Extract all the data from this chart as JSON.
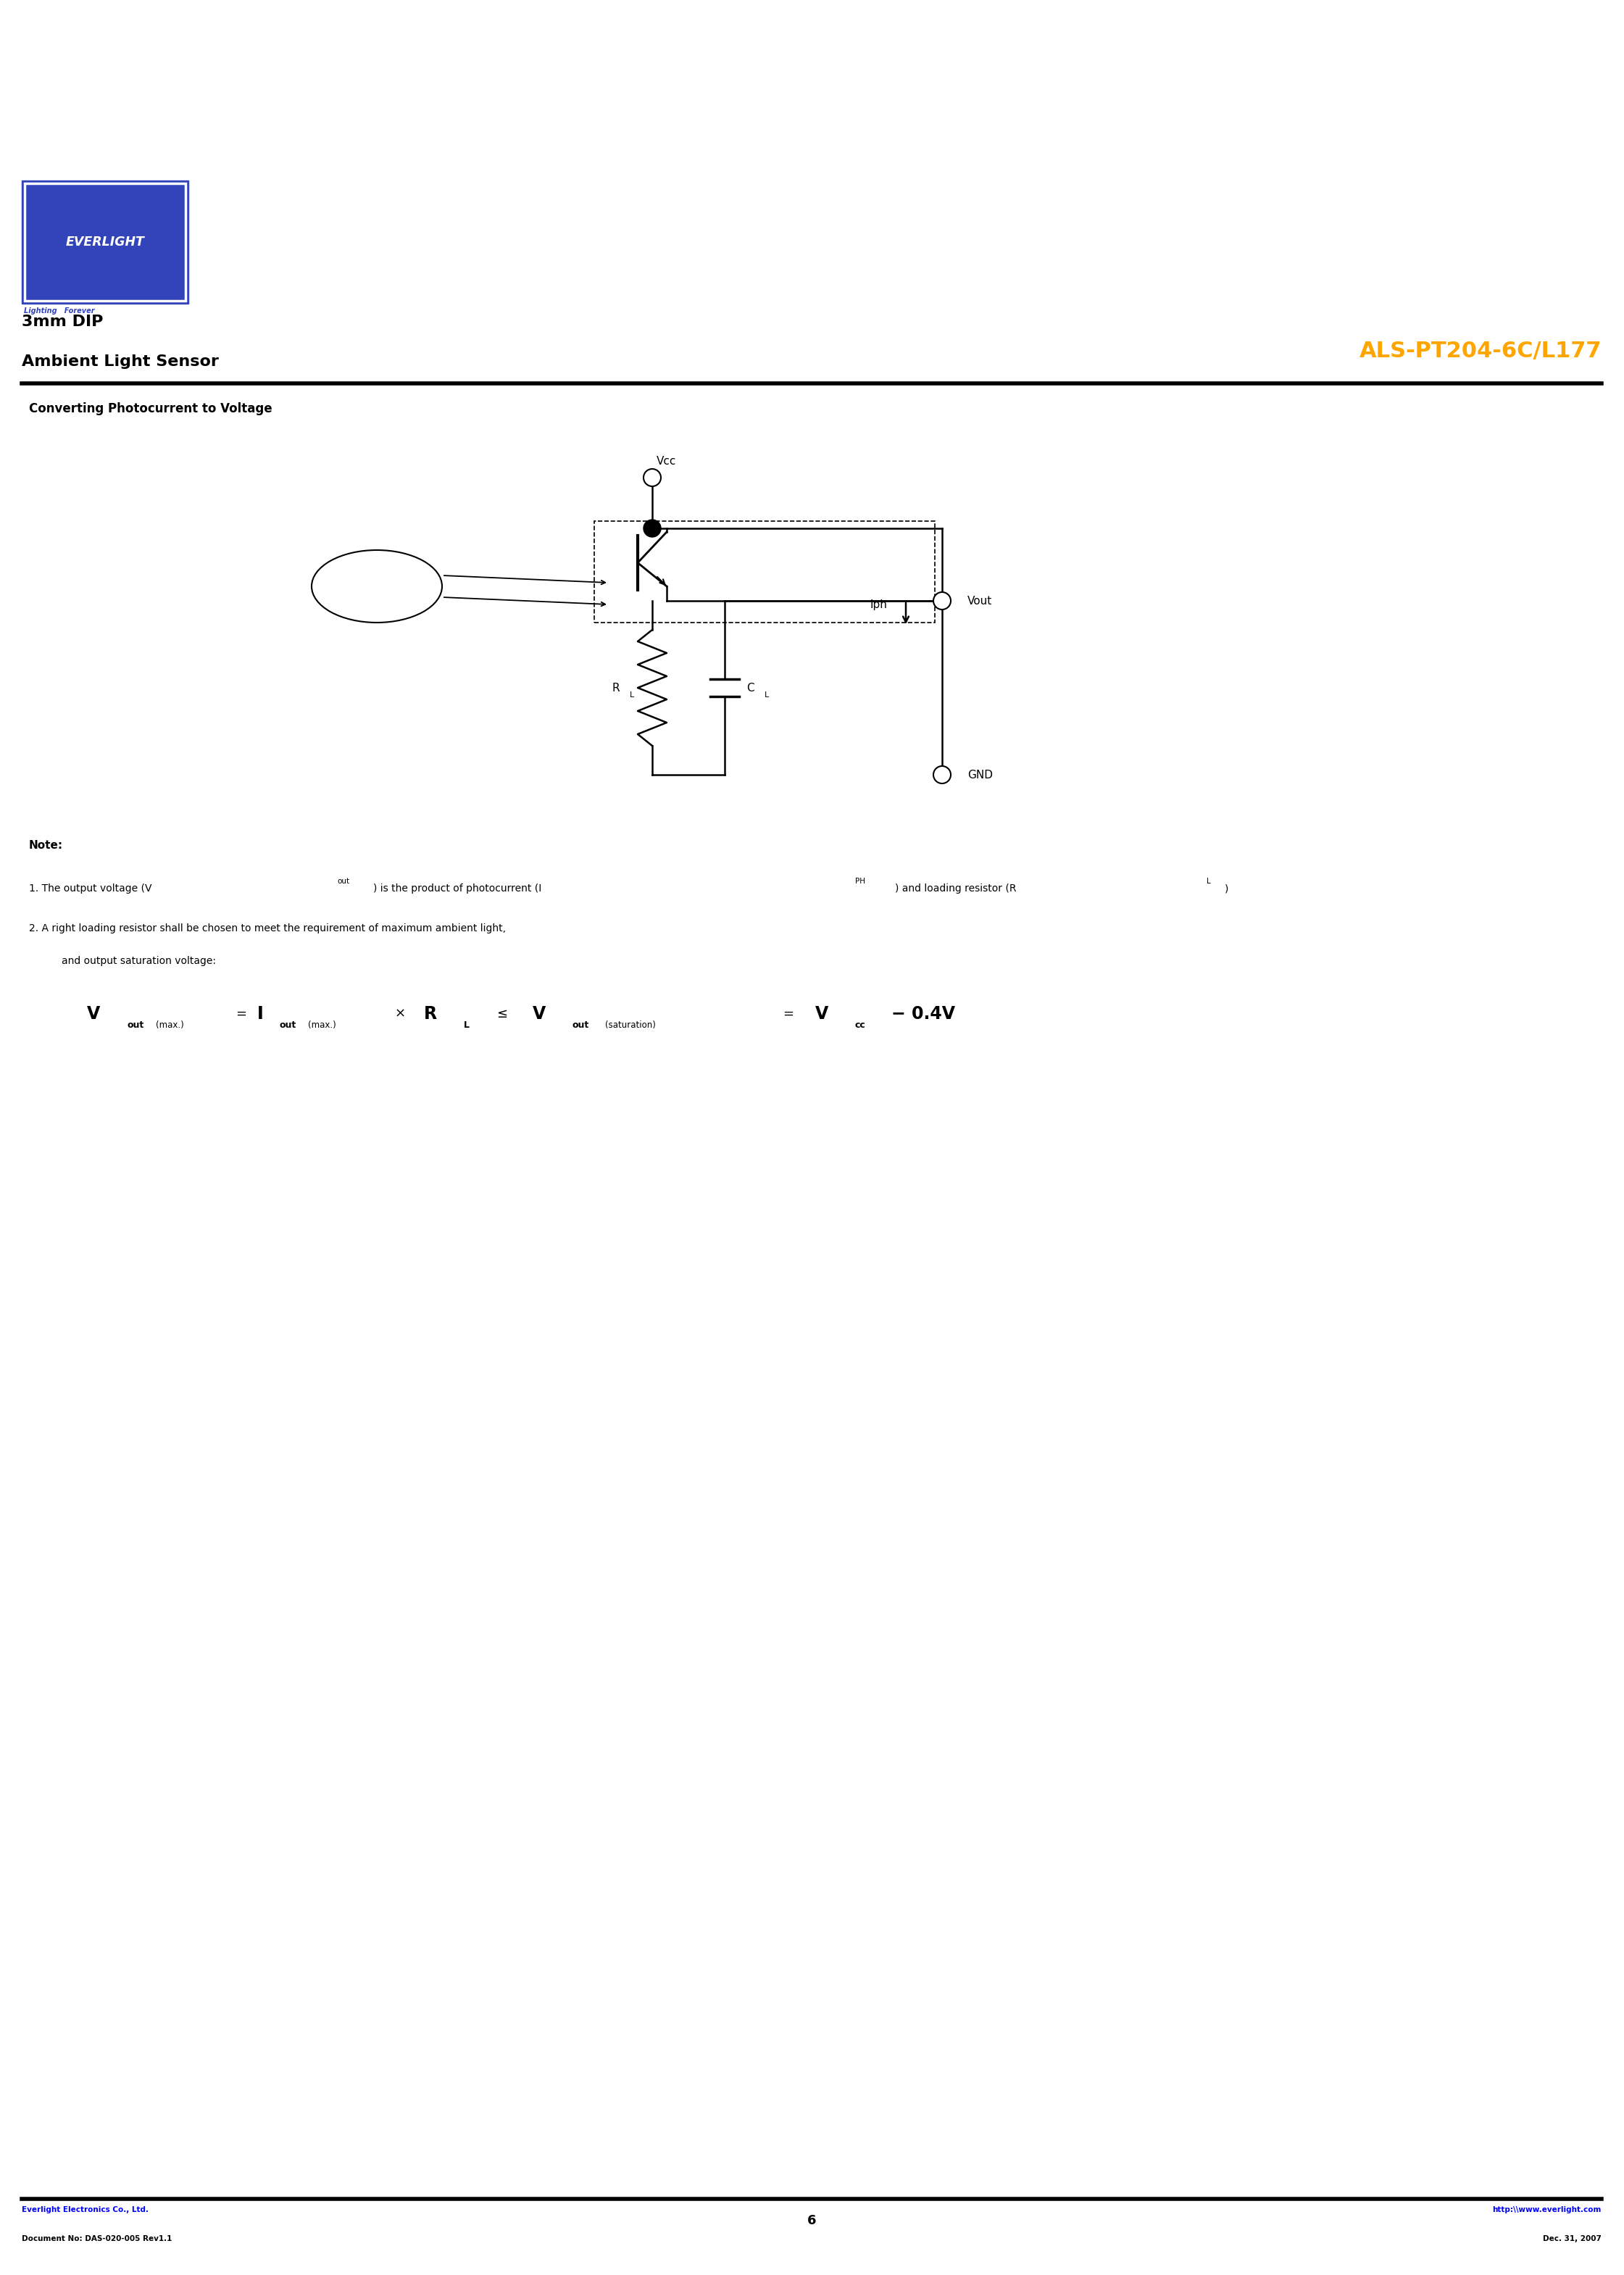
{
  "page_width": 22.41,
  "page_height": 31.39,
  "bg_color": "#ffffff",
  "logo_bg_color": "#3344bb",
  "logo_text": "EVERLIGHT",
  "logo_text_color": "#ffffff",
  "tagline": "Lighting   Forever",
  "tagline_color": "#3344bb",
  "title_left_line1": "3mm DIP",
  "title_left_line2": "Ambient Light Sensor",
  "title_right": "ALS-PT204-6C/L177",
  "title_right_color": "#FFA500",
  "section_title": "Converting Photocurrent to Voltage",
  "note_title": "Note:",
  "footer_left1": "Everlight Electronics Co., Ltd.",
  "footer_left2": "Document No: DAS-020-005 Rev1.1",
  "footer_center": "6",
  "footer_right1": "http:\\\\www.everlight.com",
  "footer_right2": "Dec. 31, 2007"
}
